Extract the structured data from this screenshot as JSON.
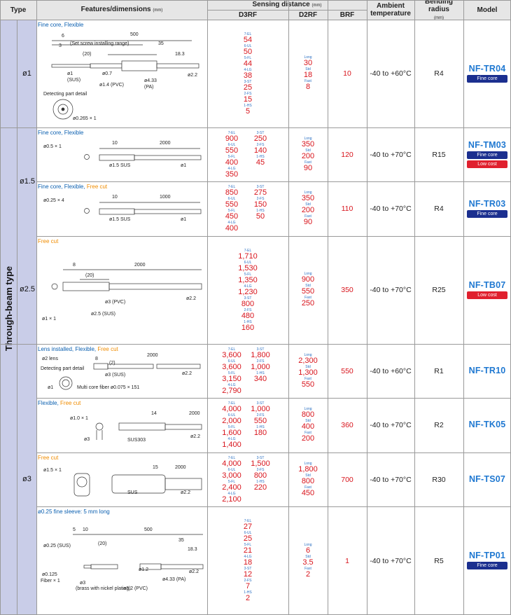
{
  "header": {
    "type": "Type",
    "features": "Features/dimensions",
    "features_unit": "(mm)",
    "sensing": "Sensing distance",
    "sensing_unit": "(mm)",
    "d3rf": "D3RF",
    "d2rf": "D2RF",
    "brf": "BRF",
    "ambient": "Ambient temperature",
    "bending": "Bending radius",
    "bending_unit": "(mm)",
    "model": "Model"
  },
  "type_label": "Through-beam type",
  "diameters": {
    "d1": "ø1",
    "d15": "ø1.5",
    "d25": "ø2.5",
    "d3": "ø3"
  },
  "rows": [
    {
      "title_parts": [
        {
          "t": "Fine core, Flexible",
          "c": "blue"
        }
      ],
      "dims": [
        "6",
        "3",
        "500",
        "(Set screw installing range)",
        "(20)",
        "35",
        "18.3",
        "ø1",
        "(SUS)",
        "ø0.7",
        "ø1.4 (PVC)",
        "ø4.33",
        "(PA)",
        "ø2.2",
        "Detecting part detail",
        "ø0.265 × 1"
      ],
      "d3rf": [
        [
          "7-EL",
          "54"
        ],
        [
          "6-UL",
          "50"
        ],
        [
          "5-FL",
          "44"
        ],
        [
          "4-LG",
          "38"
        ],
        [
          "3-ST",
          "25"
        ],
        [
          "2-FS",
          "15"
        ],
        [
          "1-HS",
          "5"
        ]
      ],
      "d2rf": [
        [
          "Long",
          "30"
        ],
        [
          "Std",
          "18"
        ],
        [
          "Fast",
          "8"
        ]
      ],
      "brf": "10",
      "temp": "-40 to +60°C",
      "bend": "R4",
      "model": "NF-TR04",
      "badges": [
        "Fine core"
      ]
    },
    {
      "title_parts": [
        {
          "t": "Fine core, Flexible",
          "c": "blue"
        }
      ],
      "dims": [
        "ø0.5 × 1",
        "10",
        "2000",
        "ø1.5 SUS",
        "ø1"
      ],
      "d3rf_left": [
        [
          "7-EL",
          "900"
        ],
        [
          "6-UL",
          "550"
        ],
        [
          "5-FL",
          "400"
        ],
        [
          "4-LG",
          "350"
        ]
      ],
      "d3rf_right": [
        [
          "3-ST",
          "250"
        ],
        [
          "2-FS",
          "140"
        ],
        [
          "1-HS",
          "45"
        ]
      ],
      "d2rf": [
        [
          "Long",
          "350"
        ],
        [
          "Std",
          "200"
        ],
        [
          "Fast",
          "90"
        ]
      ],
      "brf": "120",
      "temp": "-40 to +70°C",
      "bend": "R15",
      "model": "NF-TM03",
      "badges": [
        "Fine core",
        "Low cost"
      ]
    },
    {
      "title_parts": [
        {
          "t": "Fine core, Flexible, ",
          "c": "blue"
        },
        {
          "t": "Free cut",
          "c": "orange"
        }
      ],
      "dims": [
        "ø0.25 × 4",
        "10",
        "1000",
        "ø1.5 SUS",
        "ø1"
      ],
      "d3rf_left": [
        [
          "7-EL",
          "850"
        ],
        [
          "6-UL",
          "550"
        ],
        [
          "5-FL",
          "450"
        ],
        [
          "4-LG",
          "400"
        ]
      ],
      "d3rf_right": [
        [
          "3-ST",
          "275"
        ],
        [
          "2-FS",
          "150"
        ],
        [
          "1-HS",
          "50"
        ]
      ],
      "d2rf": [
        [
          "Long",
          "350"
        ],
        [
          "Std",
          "200"
        ],
        [
          "Fast",
          "90"
        ]
      ],
      "brf": "110",
      "temp": "-40 to +70°C",
      "bend": "R4",
      "model": "NF-TR03",
      "badges": [
        "Fine core"
      ]
    },
    {
      "title_parts": [
        {
          "t": "Free cut",
          "c": "orange"
        }
      ],
      "dims": [
        "8",
        "2000",
        "(20)",
        "ø3 (PVC)",
        "ø2.2",
        "ø2.5 (SUS)",
        "ø1 × 1"
      ],
      "d3rf": [
        [
          "7-EL",
          "1,710"
        ],
        [
          "6-UL",
          "1,530"
        ],
        [
          "5-FL",
          "1,350"
        ],
        [
          "4-LG",
          "1,230"
        ],
        [
          "3-ST",
          "800"
        ],
        [
          "2-FS",
          "480"
        ],
        [
          "1-HS",
          "160"
        ]
      ],
      "d2rf": [
        [
          "Long",
          "900"
        ],
        [
          "Std",
          "550"
        ],
        [
          "Fast",
          "250"
        ]
      ],
      "brf": "350",
      "temp": "-40 to +70°C",
      "bend": "R25",
      "model": "NF-TB07",
      "badges": [
        "Low cost"
      ]
    },
    {
      "title_parts": [
        {
          "t": "Lens installed, Flexible, ",
          "c": "blue"
        },
        {
          "t": "Free cut",
          "c": "orange"
        }
      ],
      "dims": [
        "ø2 lens",
        "8",
        "(2)",
        "2000",
        "Detecting part detail",
        "ø3 (SUS)",
        "ø2.2",
        "ø1",
        "Multi core fiber ø0.075 × 151"
      ],
      "d3rf_left": [
        [
          "7-EL",
          "3,600"
        ],
        [
          "6-UL",
          "3,600"
        ],
        [
          "5-FL",
          "3,150"
        ],
        [
          "4-LG",
          "2,790"
        ]
      ],
      "d3rf_right": [
        [
          "3-ST",
          "1,800"
        ],
        [
          "2-FS",
          "1,000"
        ],
        [
          "1-HS",
          "340"
        ]
      ],
      "d2rf": [
        [
          "Long",
          "2,300"
        ],
        [
          "Std",
          "1,300"
        ],
        [
          "Fast",
          "550"
        ]
      ],
      "brf": "550",
      "temp": "-40 to +60°C",
      "bend": "R1",
      "model": "NF-TR10",
      "badges": []
    },
    {
      "title_parts": [
        {
          "t": "Flexible, ",
          "c": "blue"
        },
        {
          "t": "Free cut",
          "c": "orange"
        }
      ],
      "dims": [
        "ø1.0 × 1",
        "14",
        "2000",
        "ø3",
        "SUS303",
        "ø2.2"
      ],
      "d3rf_left": [
        [
          "7-EL",
          "4,000"
        ],
        [
          "6-UL",
          "2,000"
        ],
        [
          "5-FL",
          "1,600"
        ],
        [
          "4-LG",
          "1,400"
        ]
      ],
      "d3rf_right": [
        [
          "3-ST",
          "1,000"
        ],
        [
          "2-FS",
          "550"
        ],
        [
          "1-HS",
          "180"
        ]
      ],
      "d2rf": [
        [
          "Long",
          "800"
        ],
        [
          "Std",
          "400"
        ],
        [
          "Fast",
          "200"
        ]
      ],
      "brf": "360",
      "temp": "-40 to +70°C",
      "bend": "R2",
      "model": "NF-TK05",
      "badges": []
    },
    {
      "title_parts": [
        {
          "t": "Free cut",
          "c": "orange"
        }
      ],
      "dims": [
        "ø1.5 × 1",
        "15",
        "2000",
        "SUS",
        "ø2.2"
      ],
      "d3rf_left": [
        [
          "7-EL",
          "4,000"
        ],
        [
          "6-UL",
          "3,000"
        ],
        [
          "5-FL",
          "2,400"
        ],
        [
          "4-LG",
          "2,100"
        ]
      ],
      "d3rf_right": [
        [
          "3-ST",
          "1,500"
        ],
        [
          "2-FS",
          "800"
        ],
        [
          "1-HS",
          "220"
        ]
      ],
      "d2rf": [
        [
          "Long",
          "1,800"
        ],
        [
          "Std",
          "800"
        ],
        [
          "Fast",
          "450"
        ]
      ],
      "brf": "700",
      "temp": "-40 to +70°C",
      "bend": "R30",
      "model": "NF-TS07",
      "badges": []
    },
    {
      "title_parts": [
        {
          "t": "ø0.25 fine sleeve: 5 mm long",
          "c": "blue"
        }
      ],
      "dims": [
        "5",
        "10",
        "500",
        "35",
        "(20)",
        "18.3",
        "ø0.25 (SUS)",
        "ø1.2",
        "ø2.2",
        "ø0.125",
        "Fiber × 1",
        "ø3",
        "(brass with nickel plating)",
        "ø3.2 (PVC)",
        "ø4.33 (PA)"
      ],
      "d3rf": [
        [
          "7-EL",
          "27"
        ],
        [
          "6-UL",
          "25"
        ],
        [
          "5-FL",
          "21"
        ],
        [
          "4-LG",
          "18"
        ],
        [
          "3-ST",
          "12"
        ],
        [
          "2-FS",
          "7"
        ],
        [
          "1-HS",
          "2"
        ]
      ],
      "d2rf": [
        [
          "Long",
          "6"
        ],
        [
          "Std",
          "3.5"
        ],
        [
          "Fast",
          "2"
        ]
      ],
      "brf": "1",
      "temp": "-40 to +70°C",
      "bend": "R5",
      "model": "NF-TP01",
      "badges": [
        "Fine core"
      ]
    }
  ]
}
